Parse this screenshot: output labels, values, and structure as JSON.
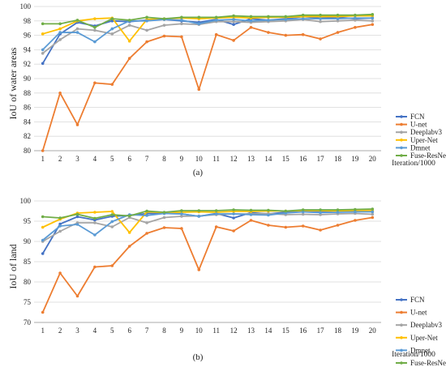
{
  "chart_data": [
    {
      "type": "line",
      "panel_label": "(a)",
      "xlabel": "Iteration/1000",
      "ylabel": "IoU of water areas",
      "x": [
        1,
        2,
        3,
        4,
        5,
        6,
        7,
        8,
        9,
        10,
        11,
        12,
        13,
        14,
        15,
        16,
        17,
        18,
        19,
        20
      ],
      "ylim": [
        80,
        100
      ],
      "yticks": [
        80,
        82,
        84,
        86,
        88,
        90,
        92,
        94,
        96,
        98,
        100
      ],
      "grid": "horizontal",
      "legend_position": "right",
      "series": [
        {
          "name": "FCN",
          "color": "#4472c4",
          "values": [
            92.1,
            96.2,
            97.8,
            97.3,
            98.0,
            97.9,
            98.1,
            98.2,
            98.0,
            97.8,
            98.2,
            97.5,
            98.3,
            98.1,
            98.3,
            98.6,
            98.4,
            98.5,
            98.3,
            98.4
          ]
        },
        {
          "name": "U-net",
          "color": "#ed7d31",
          "values": [
            80.0,
            88.0,
            83.6,
            89.4,
            89.2,
            92.8,
            95.1,
            95.9,
            95.8,
            88.5,
            96.1,
            95.3,
            97.1,
            96.4,
            96.0,
            96.1,
            95.5,
            96.4,
            97.1,
            97.5
          ]
        },
        {
          "name": "Deeplabv3",
          "color": "#a5a5a5",
          "values": [
            93.5,
            95.4,
            96.9,
            96.7,
            96.2,
            97.4,
            96.7,
            97.4,
            97.6,
            97.5,
            97.9,
            97.9,
            97.8,
            97.9,
            98.0,
            98.2,
            97.9,
            98.0,
            98.1,
            98.0
          ]
        },
        {
          "name": "Uper-Net",
          "color": "#ffc000",
          "values": [
            96.2,
            96.9,
            98.0,
            98.3,
            98.4,
            95.2,
            98.2,
            98.3,
            98.4,
            98.3,
            98.4,
            98.5,
            98.4,
            98.5,
            98.5,
            98.6,
            98.6,
            98.6,
            98.7,
            98.7
          ]
        },
        {
          "name": "Dmnet",
          "color": "#5b9bd5",
          "values": [
            94.0,
            96.4,
            96.4,
            95.1,
            96.9,
            98.0,
            98.0,
            98.2,
            98.1,
            97.6,
            98.1,
            98.2,
            98.0,
            98.1,
            98.2,
            98.3,
            98.3,
            98.3,
            98.4,
            98.4
          ]
        },
        {
          "name": "Fuse-ResNet",
          "color": "#70ad47",
          "values": [
            97.6,
            97.6,
            98.1,
            97.1,
            98.3,
            98.1,
            98.5,
            98.3,
            98.5,
            98.5,
            98.5,
            98.7,
            98.6,
            98.6,
            98.6,
            98.8,
            98.8,
            98.8,
            98.8,
            98.9
          ]
        }
      ]
    },
    {
      "type": "line",
      "panel_label": "(b)",
      "xlabel": "Iteration/1000",
      "ylabel": "IoU of land",
      "x": [
        1,
        2,
        3,
        4,
        5,
        6,
        7,
        8,
        9,
        10,
        11,
        12,
        13,
        14,
        15,
        16,
        17,
        18,
        19,
        20
      ],
      "ylim": [
        70,
        100
      ],
      "yticks": [
        70,
        75,
        80,
        85,
        90,
        95,
        100
      ],
      "grid": "horizontal",
      "legend_position": "right",
      "series": [
        {
          "name": "FCN",
          "color": "#4472c4",
          "values": [
            87.0,
            94.3,
            96.1,
            95.3,
            96.2,
            96.4,
            96.9,
            96.9,
            96.8,
            96.2,
            96.9,
            95.8,
            97.1,
            96.8,
            97.2,
            97.5,
            97.3,
            97.6,
            97.4,
            97.4
          ]
        },
        {
          "name": "U-net",
          "color": "#ed7d31",
          "values": [
            72.5,
            82.2,
            76.5,
            83.7,
            84.0,
            88.8,
            92.0,
            93.4,
            93.2,
            83.0,
            93.6,
            92.6,
            95.2,
            94.0,
            93.5,
            93.8,
            92.8,
            94.0,
            95.2,
            95.9
          ]
        },
        {
          "name": "Deeplabv3",
          "color": "#a5a5a5",
          "values": [
            90.0,
            92.5,
            94.6,
            94.6,
            93.6,
            95.9,
            94.6,
            95.9,
            96.2,
            96.3,
            96.6,
            96.8,
            96.8,
            96.9,
            96.6,
            96.7,
            96.6,
            96.8,
            96.9,
            96.7
          ]
        },
        {
          "name": "Uper-Net",
          "color": "#ffc000",
          "values": [
            93.5,
            95.5,
            97.0,
            97.2,
            97.4,
            92.2,
            97.3,
            97.1,
            97.2,
            97.3,
            97.2,
            97.4,
            97.4,
            97.5,
            97.5,
            97.6,
            97.6,
            97.5,
            97.6,
            97.6
          ]
        },
        {
          "name": "Dmnet",
          "color": "#5b9bd5",
          "values": [
            90.3,
            93.8,
            94.2,
            91.6,
            94.9,
            96.6,
            96.4,
            96.9,
            96.8,
            96.2,
            96.8,
            96.8,
            96.6,
            96.5,
            97.0,
            97.3,
            97.1,
            97.2,
            97.3,
            97.3
          ]
        },
        {
          "name": "Fuse-ResNet",
          "color": "#70ad47",
          "values": [
            96.1,
            95.8,
            96.7,
            95.7,
            96.6,
            96.3,
            97.5,
            97.2,
            97.6,
            97.6,
            97.6,
            97.8,
            97.7,
            97.7,
            97.5,
            97.8,
            97.8,
            97.8,
            97.9,
            98.0
          ]
        }
      ]
    }
  ]
}
